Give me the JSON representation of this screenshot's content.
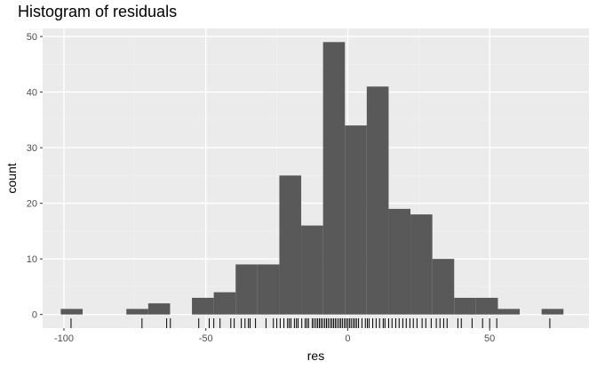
{
  "chart_data": {
    "type": "bar",
    "title": "Histogram of residuals",
    "xlabel": "res",
    "ylabel": "count",
    "xlim": [
      -107.5,
      85
    ],
    "ylim": [
      -2.45,
      51.45
    ],
    "x_ticks": [
      -100,
      -50,
      0,
      50
    ],
    "y_ticks": [
      0,
      10,
      20,
      30,
      40,
      50
    ],
    "grid": true,
    "bin_width": 7.7,
    "bins": [
      {
        "x0": -101.1,
        "x1": -93.4,
        "count": 1
      },
      {
        "x0": -93.4,
        "x1": -85.7,
        "count": 0
      },
      {
        "x0": -85.7,
        "x1": -78.0,
        "count": 0
      },
      {
        "x0": -78.0,
        "x1": -70.3,
        "count": 1
      },
      {
        "x0": -70.3,
        "x1": -62.6,
        "count": 2
      },
      {
        "x0": -62.6,
        "x1": -54.9,
        "count": 0
      },
      {
        "x0": -54.9,
        "x1": -47.2,
        "count": 3
      },
      {
        "x0": -47.2,
        "x1": -39.5,
        "count": 4
      },
      {
        "x0": -39.5,
        "x1": -31.8,
        "count": 9
      },
      {
        "x0": -31.8,
        "x1": -24.1,
        "count": 9
      },
      {
        "x0": -24.1,
        "x1": -16.4,
        "count": 25
      },
      {
        "x0": -16.4,
        "x1": -8.7,
        "count": 16
      },
      {
        "x0": -8.7,
        "x1": -1.0,
        "count": 49
      },
      {
        "x0": -1.0,
        "x1": 6.7,
        "count": 34
      },
      {
        "x0": 6.7,
        "x1": 14.4,
        "count": 41
      },
      {
        "x0": 14.4,
        "x1": 22.1,
        "count": 19
      },
      {
        "x0": 22.1,
        "x1": 29.8,
        "count": 18
      },
      {
        "x0": 29.8,
        "x1": 37.5,
        "count": 10
      },
      {
        "x0": 37.5,
        "x1": 45.2,
        "count": 3
      },
      {
        "x0": 45.2,
        "x1": 52.9,
        "count": 3
      },
      {
        "x0": 52.9,
        "x1": 60.6,
        "count": 1
      },
      {
        "x0": 60.6,
        "x1": 68.3,
        "count": 0
      },
      {
        "x0": 68.3,
        "x1": 76.0,
        "count": 1
      }
    ],
    "rug": [
      -97.5,
      -72.5,
      -63.8,
      -62.5,
      -52.5,
      -48.8,
      -47.2,
      -45,
      -41.2,
      -40,
      -37.5,
      -36.2,
      -35,
      -34.4,
      -32.5,
      -28.8,
      -26.2,
      -25,
      -23.8,
      -22.5,
      -21.2,
      -20.6,
      -20,
      -18.8,
      -18.1,
      -17.5,
      -16.2,
      -15,
      -14.4,
      -13.8,
      -12.5,
      -11.9,
      -11.2,
      -10.6,
      -10,
      -9.4,
      -8.8,
      -8.1,
      -7.5,
      -6.9,
      -6.2,
      -5.6,
      -5,
      -4.4,
      -3.8,
      -3.1,
      -2.5,
      -1.9,
      -1.2,
      -0.6,
      0,
      0.6,
      1.2,
      1.9,
      2.5,
      3.1,
      3.8,
      5,
      6.2,
      6.9,
      7.5,
      8.8,
      10,
      11.2,
      12.5,
      13.1,
      14.4,
      15.6,
      16.9,
      18.1,
      19.4,
      20.6,
      21.9,
      23.1,
      24.4,
      26.2,
      27.5,
      29.4,
      31.2,
      32.5,
      33.8,
      35,
      38.8,
      40,
      43.8,
      47.5,
      50,
      52.5,
      71.2
    ]
  },
  "colors": {
    "panel": "#ebebeb",
    "grid_major": "#ffffff",
    "grid_minor": "#f2f2f2",
    "bar": "#595959",
    "rug": "#000000",
    "tick": "#333333"
  }
}
